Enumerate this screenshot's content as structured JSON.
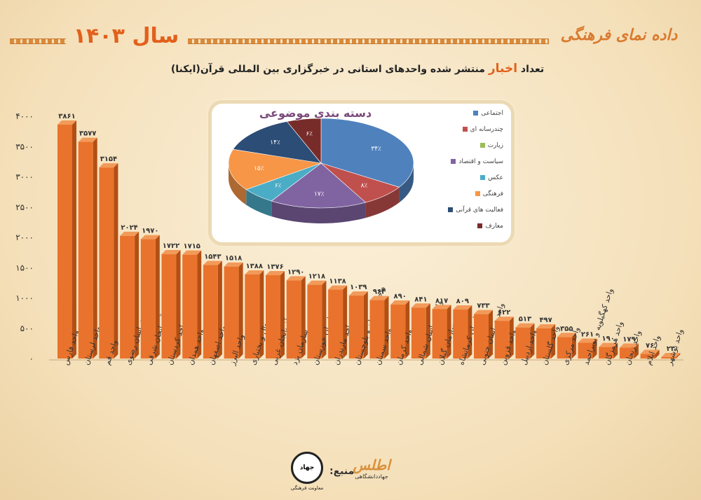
{
  "header": {
    "brand": "داده نمای فرهنگی",
    "year_label": "سال ۱۴۰۳",
    "title_before": "تعداد",
    "title_highlight": "اخبار",
    "title_after": "منتشر شده واحدهای استانی در خبرگزاری بین المللی قرآن(ایکنا)"
  },
  "colors": {
    "bar": "#e9732c",
    "bar_dark": "#b14f15",
    "bar_top": "#f29a5a",
    "accent": "#e2601c"
  },
  "chart_data": [
    {
      "type": "bar",
      "title": "تعداد اخبار منتشر شده واحدهای استانی در خبرگزاری بین المللی قرآن(ایکنا)",
      "ylim": [
        0,
        4000
      ],
      "yticks": [
        0,
        500,
        1000,
        1500,
        2000,
        2500,
        3000,
        3500,
        4000
      ],
      "ytick_labels": [
        "۰",
        "۵۰۰",
        "۱۰۰۰",
        "۱۵۰۰",
        "۲۰۰۰",
        "۲۵۰۰",
        "۳۰۰۰",
        "۳۵۰۰",
        "۴۰۰۰"
      ],
      "grid": false,
      "categories": [
        "واحد فارس",
        "واحد لرستان",
        "واحد قم",
        "سازمان خراسان رضوی",
        "سازمان آذربایجان شرقی",
        "واحد کردستان",
        "واحد همدان",
        "واحد اصفهان",
        "واحد البرز",
        "واحد چهارمحال و بختیاری",
        "واحد آذربایجان غربی",
        "سازمان یزد",
        "سازمان خوزستان",
        "واحد مازندران",
        "واحد سیستان و بلوچستان",
        "واحد سمنان",
        "واحد کرمان",
        "واحد خراسان شمالی",
        "سازمان گیلان",
        "سازمان کرمانشاه",
        "واحد خراسان جنوبی",
        "واحد قزوین",
        "واحد اردبیل",
        "واحد گلستان",
        "واحد مرکزی",
        "واحد کهگیلویه و بویراحمد",
        "واحد هرمزگان",
        "واحد زنجان",
        "واحد ایلام",
        "واحد بوشهر"
      ],
      "values": [
        3861,
        3577,
        3154,
        2024,
        1970,
        1722,
        1715,
        1543,
        1518,
        1388,
        1376,
        1290,
        1218,
        1138,
        1039,
        964,
        890,
        841,
        817,
        809,
        733,
        622,
        513,
        497,
        355,
        261,
        190,
        179,
        76,
        23
      ],
      "value_labels": [
        "۳۸۶۱",
        "۳۵۷۷",
        "۳۱۵۴",
        "۲۰۲۴",
        "۱۹۷۰",
        "۱۷۲۲",
        "۱۷۱۵",
        "۱۵۴۳",
        "۱۵۱۸",
        "۱۳۸۸",
        "۱۳۷۶",
        "۱۲۹۰",
        "۱۲۱۸",
        "۱۱۳۸",
        "۱۰۳۹",
        "۹۶۴",
        "۸۹۰",
        "۸۴۱",
        "۸۱۷",
        "۸۰۹",
        "۷۳۳",
        "۶۲۲",
        "۵۱۳",
        "۴۹۷",
        "۳۵۵",
        "۲۶۱",
        "۱۹۰",
        "۱۷۹",
        "۷۶",
        "۲۳"
      ]
    },
    {
      "type": "pie",
      "title": "دسته بندی موضوعی",
      "legend_position": "right",
      "labels": [
        "اجتماعی",
        "چندرسانه ای",
        "زیارت",
        "سیاست و اقتصاد",
        "عکس",
        "فرهنگی",
        "فعالیت های قرآنی",
        "معارف"
      ],
      "values": [
        34,
        8,
        0,
        17,
        6,
        15,
        14,
        6
      ],
      "value_labels": [
        "۳۴٪",
        "۸٪",
        "",
        "۱۷٪",
        "۶٪",
        "۱۵٪",
        "۱۴٪",
        "۶٪"
      ],
      "colors": [
        "#4f81bd",
        "#c0504d",
        "#9bbb59",
        "#8064a2",
        "#4bacc6",
        "#f79646",
        "#2c4d75",
        "#772c2a"
      ]
    }
  ],
  "footer": {
    "source_label": "منبع:",
    "logo1_text": "جهاد",
    "logo1_caption": "معاونت فرهنگی",
    "logo2_text": "اطلس",
    "logo2_caption": "جهاددانشگاهی"
  }
}
